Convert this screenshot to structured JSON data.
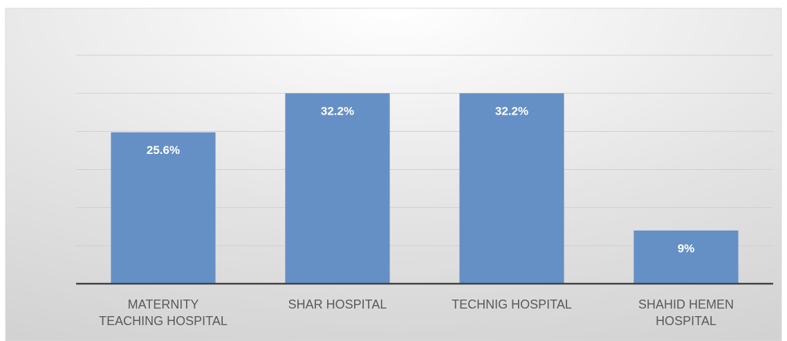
{
  "chart_data": {
    "type": "bar",
    "categories": [
      "MATERNITY\nTEACHING HOSPITAL",
      "SHAR HOSPITAL",
      "TECHNIG HOSPITAL",
      "SHAHID HEMEN\nHOSPITAL"
    ],
    "values": [
      25.6,
      32.2,
      32.2,
      9
    ],
    "value_labels": [
      "25.6%",
      "32.2%",
      "32.2%",
      "9%"
    ],
    "color": "#6590c6",
    "ylim": [
      0,
      38.64
    ],
    "yticks": [
      0,
      6.44,
      12.88,
      19.32,
      25.76,
      32.2,
      38.64
    ],
    "grid": true
  }
}
